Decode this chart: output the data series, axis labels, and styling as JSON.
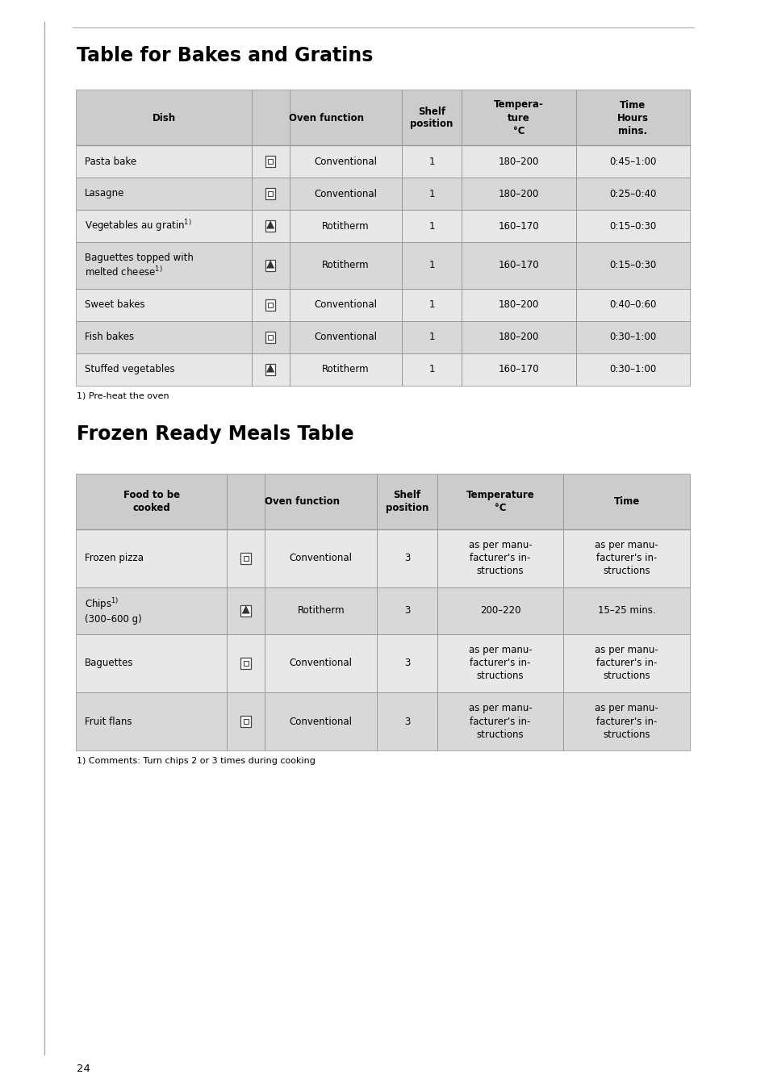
{
  "title1": "Table for Bakes and Gratins",
  "title2": "Frozen Ready Meals Table",
  "bg_color": "#ffffff",
  "header_bg": "#cccccc",
  "row_bg_light": "#e8e8e8",
  "row_bg_dark": "#d8d8d8",
  "border_color": "#999999",
  "text_color": "#000000",
  "title_fontsize": 17,
  "header_fontsize": 8.5,
  "cell_fontsize": 8.5,
  "footnote_fontsize": 8.0,
  "page_number": "24",
  "table1_headers": [
    "Dish",
    "Oven function",
    "Shelf\nposition",
    "Tempera-\nture\n°C",
    "Time\nHours\nmins."
  ],
  "table1_rows": [
    [
      "Pasta bake",
      "conv",
      "Conventional",
      "1",
      "180–200",
      "0:45–1:00"
    ],
    [
      "Lasagne",
      "conv",
      "Conventional",
      "1",
      "180–200",
      "0:25–0:40"
    ],
    [
      "Vegetables au gratin¹)",
      "roti",
      "Rotitherm",
      "1",
      "160–170",
      "0:15–0:30"
    ],
    [
      "Baguettes topped with\nmelted cheese¹)",
      "roti",
      "Rotitherm",
      "1",
      "160–170",
      "0:15–0:30"
    ],
    [
      "Sweet bakes",
      "conv",
      "Conventional",
      "1",
      "180–200",
      "0:40–0:60"
    ],
    [
      "Fish bakes",
      "conv",
      "Conventional",
      "1",
      "180–200",
      "0:30–1:00"
    ],
    [
      "Stuffed vegetables",
      "roti",
      "Rotitherm",
      "1",
      "160–170",
      "0:30–1:00"
    ]
  ],
  "table1_footnote": "1) Pre-heat the oven",
  "table2_headers": [
    "Food to be\ncooked",
    "Oven function",
    "Shelf\nposition",
    "Temperature\n°C",
    "Time"
  ],
  "table2_rows": [
    [
      "Frozen pizza",
      "conv",
      "Conventional",
      "3",
      "as per manu-\nfacturer's in-\nstructions",
      "as per manu-\nfacturer's in-\nstructions"
    ],
    [
      "Chips¹)\n(300–600 g)",
      "roti",
      "Rotitherm",
      "3",
      "200–220",
      "15–25 mins."
    ],
    [
      "Baguettes",
      "conv",
      "Conventional",
      "3",
      "as per manu-\nfacturer's in-\nstructions",
      "as per manu-\nfacturer's in-\nstructions"
    ],
    [
      "Fruit flans",
      "conv",
      "Conventional",
      "3",
      "as per manu-\nfacturer's in-\nstructions",
      "as per manu-\nfacturer's in-\nstructions"
    ]
  ],
  "table2_footnote": "1) Comments: Turn chips 2 or 3 times during cooking"
}
